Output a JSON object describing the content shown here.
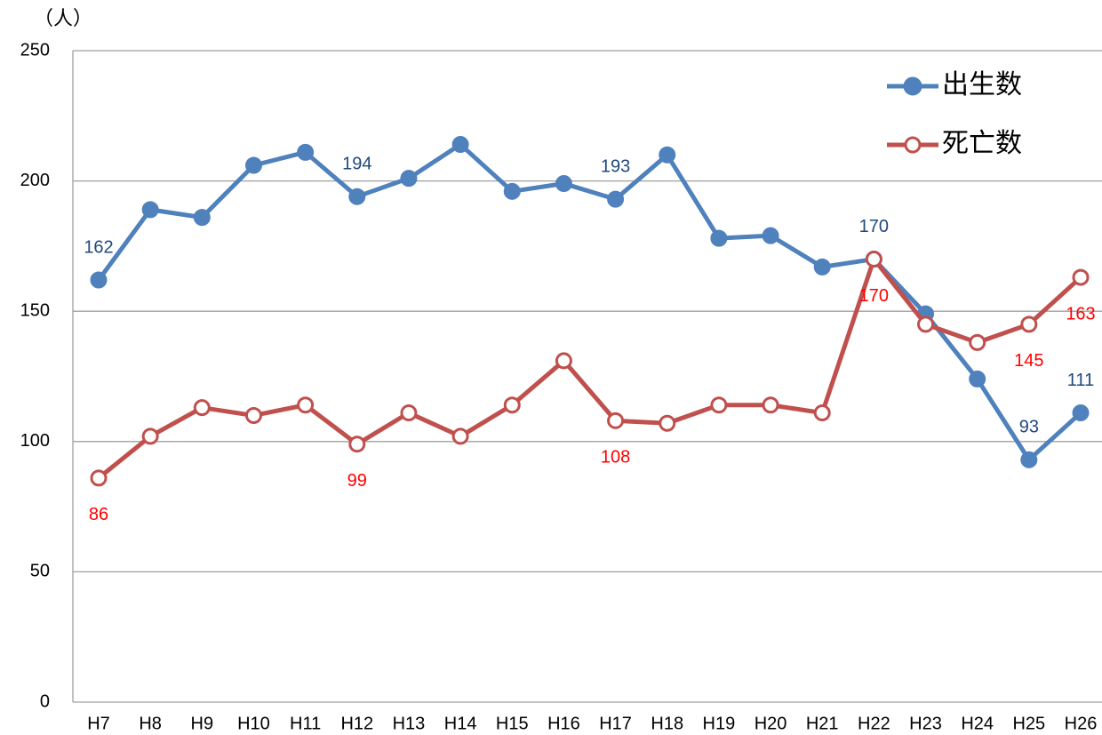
{
  "chart_data": {
    "type": "line",
    "y_unit": "（人）",
    "categories": [
      "H7",
      "H8",
      "H9",
      "H10",
      "H11",
      "H12",
      "H13",
      "H14",
      "H15",
      "H16",
      "H17",
      "H18",
      "H19",
      "H20",
      "H21",
      "H22",
      "H23",
      "H24",
      "H25",
      "H26"
    ],
    "series": [
      {
        "name": "出生数",
        "color": "#4f81bd",
        "label_color": "#1f497d",
        "marker": "filled",
        "values": [
          162,
          189,
          186,
          206,
          211,
          194,
          201,
          214,
          196,
          199,
          193,
          210,
          178,
          179,
          167,
          170,
          149,
          124,
          93,
          111
        ],
        "value_labels": [
          "162",
          null,
          null,
          null,
          null,
          "194",
          null,
          null,
          null,
          null,
          "193",
          null,
          null,
          null,
          null,
          "170",
          null,
          null,
          "93",
          "111"
        ]
      },
      {
        "name": "死亡数",
        "color": "#c0504d",
        "label_color": "#ff0000",
        "marker": "hollow",
        "values": [
          86,
          102,
          113,
          110,
          114,
          99,
          111,
          102,
          114,
          131,
          108,
          107,
          114,
          114,
          111,
          170,
          145,
          138,
          145,
          163
        ],
        "value_labels": [
          "86",
          null,
          null,
          null,
          null,
          "99",
          null,
          null,
          null,
          null,
          "108",
          null,
          null,
          null,
          null,
          "170",
          null,
          null,
          "145",
          "163"
        ]
      }
    ],
    "ylim": [
      0,
      250
    ],
    "yticks": [
      0,
      50,
      100,
      150,
      200,
      250
    ],
    "grid": true,
    "legend": "top-right"
  }
}
